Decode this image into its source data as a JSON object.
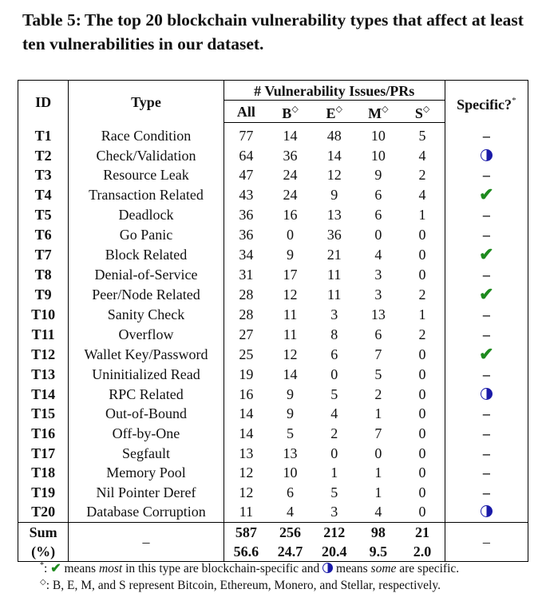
{
  "caption": {
    "label": "Table 5:",
    "text": "The top 20 blockchain vulnerability types that affect at least ten vulnerabilities in our dataset."
  },
  "header": {
    "id": "ID",
    "type": "Type",
    "group": "# Vulnerability Issues/PRs",
    "all": "All",
    "b": "B",
    "e": "E",
    "m": "M",
    "s": "S",
    "diamond": "◇",
    "specific": "Specific?",
    "star": "*"
  },
  "rows": [
    {
      "id": "T1",
      "type": "Race Condition",
      "all": "77",
      "b": "14",
      "e": "48",
      "m": "10",
      "s": "5",
      "specific": "none"
    },
    {
      "id": "T2",
      "type": "Check/Validation",
      "all": "64",
      "b": "36",
      "e": "14",
      "m": "10",
      "s": "4",
      "specific": "some"
    },
    {
      "id": "T3",
      "type": "Resource Leak",
      "all": "47",
      "b": "24",
      "e": "12",
      "m": "9",
      "s": "2",
      "specific": "none"
    },
    {
      "id": "T4",
      "type": "Transaction Related",
      "all": "43",
      "b": "24",
      "e": "9",
      "m": "6",
      "s": "4",
      "specific": "most"
    },
    {
      "id": "T5",
      "type": "Deadlock",
      "all": "36",
      "b": "16",
      "e": "13",
      "m": "6",
      "s": "1",
      "specific": "none"
    },
    {
      "id": "T6",
      "type": "Go Panic",
      "all": "36",
      "b": "0",
      "e": "36",
      "m": "0",
      "s": "0",
      "specific": "none"
    },
    {
      "id": "T7",
      "type": "Block Related",
      "all": "34",
      "b": "9",
      "e": "21",
      "m": "4",
      "s": "0",
      "specific": "most"
    },
    {
      "id": "T8",
      "type": "Denial-of-Service",
      "all": "31",
      "b": "17",
      "e": "11",
      "m": "3",
      "s": "0",
      "specific": "none"
    },
    {
      "id": "T9",
      "type": "Peer/Node Related",
      "all": "28",
      "b": "12",
      "e": "11",
      "m": "3",
      "s": "2",
      "specific": "most"
    },
    {
      "id": "T10",
      "type": "Sanity Check",
      "all": "28",
      "b": "11",
      "e": "3",
      "m": "13",
      "s": "1",
      "specific": "none"
    },
    {
      "id": "T11",
      "type": "Overflow",
      "all": "27",
      "b": "11",
      "e": "8",
      "m": "6",
      "s": "2",
      "specific": "none"
    },
    {
      "id": "T12",
      "type": "Wallet Key/Password",
      "all": "25",
      "b": "12",
      "e": "6",
      "m": "7",
      "s": "0",
      "specific": "most"
    },
    {
      "id": "T13",
      "type": "Uninitialized Read",
      "all": "19",
      "b": "14",
      "e": "0",
      "m": "5",
      "s": "0",
      "specific": "none"
    },
    {
      "id": "T14",
      "type": "RPC Related",
      "all": "16",
      "b": "9",
      "e": "5",
      "m": "2",
      "s": "0",
      "specific": "some"
    },
    {
      "id": "T15",
      "type": "Out-of-Bound",
      "all": "14",
      "b": "9",
      "e": "4",
      "m": "1",
      "s": "0",
      "specific": "none"
    },
    {
      "id": "T16",
      "type": "Off-by-One",
      "all": "14",
      "b": "5",
      "e": "2",
      "m": "7",
      "s": "0",
      "specific": "none"
    },
    {
      "id": "T17",
      "type": "Segfault",
      "all": "13",
      "b": "13",
      "e": "0",
      "m": "0",
      "s": "0",
      "specific": "none"
    },
    {
      "id": "T18",
      "type": "Memory Pool",
      "all": "12",
      "b": "10",
      "e": "1",
      "m": "1",
      "s": "0",
      "specific": "none"
    },
    {
      "id": "T19",
      "type": "Nil Pointer Deref",
      "all": "12",
      "b": "6",
      "e": "5",
      "m": "1",
      "s": "0",
      "specific": "none"
    },
    {
      "id": "T20",
      "type": "Database Corruption",
      "all": "11",
      "b": "4",
      "e": "3",
      "m": "4",
      "s": "0",
      "specific": "some"
    }
  ],
  "sum": {
    "label": "Sum",
    "type": "–",
    "all": "587",
    "b": "256",
    "e": "212",
    "m": "98",
    "s": "21",
    "specific": "–"
  },
  "pct": {
    "label": "(%)",
    "all": "56.6",
    "b": "24.7",
    "e": "20.4",
    "m": "9.5",
    "s": "2.0"
  },
  "symbols": {
    "dash": "–",
    "check": "✔"
  },
  "footnotes": {
    "star_mark": "*",
    "star_a": ": ",
    "star_b": " means ",
    "star_most": "most",
    "star_c": " in this type are blockchain-specific and ",
    "star_d": " means ",
    "star_some": "some",
    "star_e": " are specific.",
    "diamond_mark": "◇",
    "diamond_text": ": B, E, M, and S represent Bitcoin, Ethereum, Monero, and Stellar, respectively."
  },
  "colors": {
    "check": "#1e8a1e",
    "half_circle": "#1a1aa8"
  }
}
